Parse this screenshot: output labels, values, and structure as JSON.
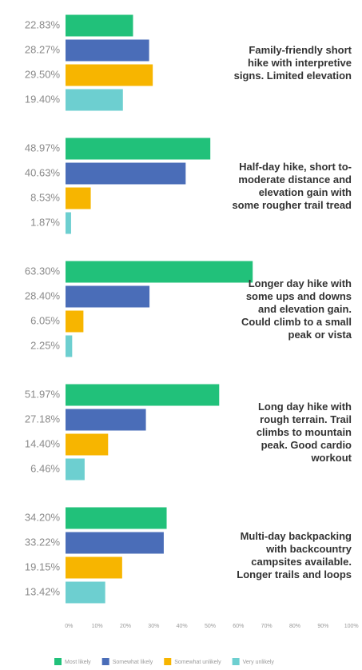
{
  "chart_data": {
    "type": "bar",
    "orientation": "horizontal",
    "categories": [
      "Family-friendly short hike with interpretive signs. Limited elevation",
      "Half-day hike, short to-moderate distance and elevation gain with some rougher trail tread",
      "Longer day hike with some ups and downs and elevation gain. Could climb to a small peak or vista",
      "Long day hike with rough terrain. Trail climbs to mountain peak. Good cardio workout",
      "Multi-day backpacking with backcountry campsites available. Longer trails and loops"
    ],
    "series": [
      {
        "name": "Most likely",
        "color": "#21c17a",
        "values": [
          22.83,
          48.97,
          63.3,
          51.97,
          34.2
        ],
        "value_labels": [
          "22.83%",
          "48.97%",
          "63.30%",
          "51.97%",
          "34.20%"
        ]
      },
      {
        "name": "Somewhat likely",
        "color": "#4a6db8",
        "values": [
          28.27,
          40.63,
          28.4,
          27.18,
          33.22
        ],
        "value_labels": [
          "28.27%",
          "40.63%",
          "28.40%",
          "27.18%",
          "33.22%"
        ]
      },
      {
        "name": "Somewhat unlikely",
        "color": "#f7b500",
        "values": [
          29.5,
          8.53,
          6.05,
          14.4,
          19.15
        ],
        "value_labels": [
          "29.50%",
          "8.53%",
          "6.05%",
          "14.40%",
          "19.15%"
        ]
      },
      {
        "name": "Very unlikely",
        "color": "#6dcfd0",
        "values": [
          19.4,
          1.87,
          2.25,
          6.46,
          13.42
        ],
        "value_labels": [
          "19.40%",
          "1.87%",
          "2.25%",
          "6.46%",
          "13.42%"
        ]
      }
    ],
    "xlim": [
      0,
      100
    ],
    "xticks": [
      {
        "value": 0,
        "label": "0%"
      },
      {
        "value": 10,
        "label": "10%"
      },
      {
        "value": 20,
        "label": "20%"
      },
      {
        "value": 30,
        "label": "30%"
      },
      {
        "value": 40,
        "label": "40%"
      },
      {
        "value": 50,
        "label": "50%"
      },
      {
        "value": 60,
        "label": "60%"
      },
      {
        "value": 70,
        "label": "70%"
      },
      {
        "value": 80,
        "label": "80%"
      },
      {
        "value": 90,
        "label": "90%"
      },
      {
        "value": 100,
        "label": "100%"
      }
    ],
    "legend": "bottom",
    "grid": false
  }
}
